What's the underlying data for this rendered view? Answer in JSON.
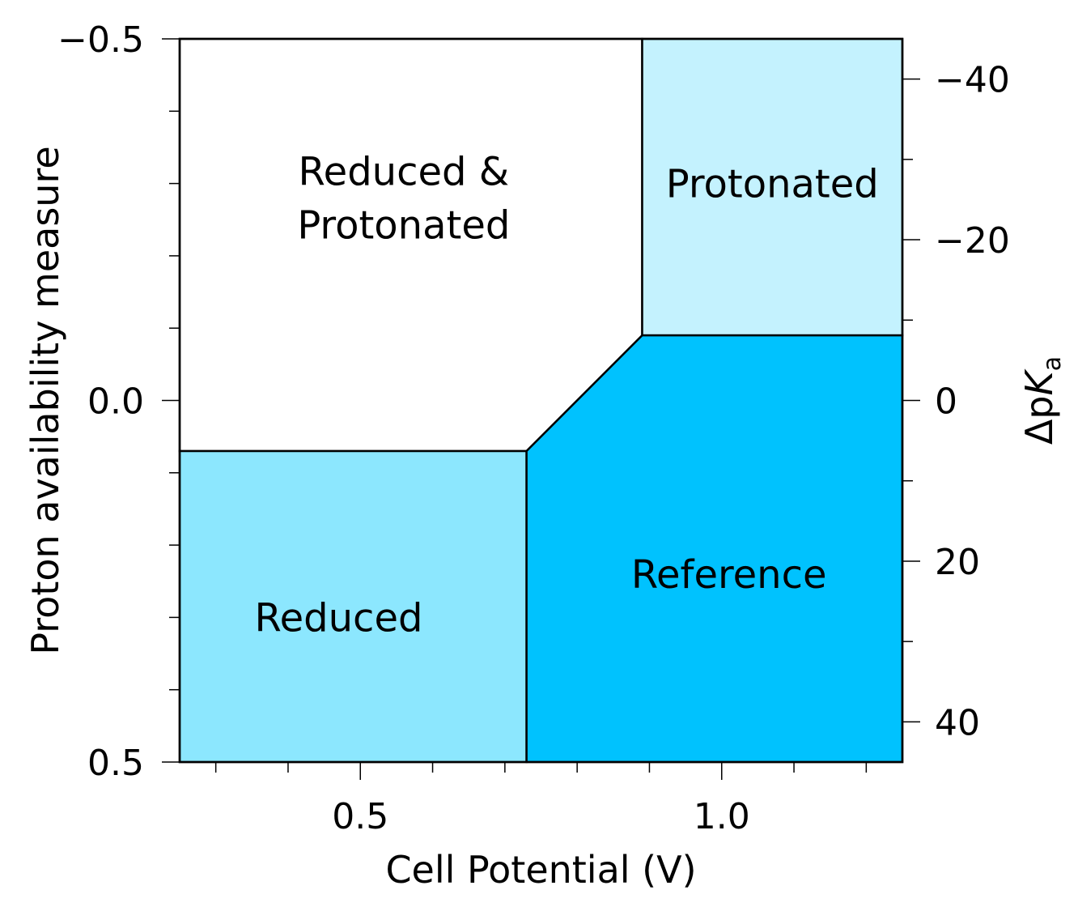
{
  "chart_data": {
    "type": "area",
    "title": "",
    "xlabel": "Cell Potential (V)",
    "ylabel": "Proton availability measure",
    "y2label": {
      "prefix": "Δp",
      "italic": "K",
      "sub": "a"
    },
    "xlim": [
      0.25,
      1.25
    ],
    "ylim": [
      -0.5,
      0.5
    ],
    "y_inverted": true,
    "y2lim": [
      -45,
      45
    ],
    "y2_inverted": true,
    "grid": false,
    "x_major_ticks": [
      0.5,
      1.0
    ],
    "x_major_labels": [
      "0.5",
      "1.0"
    ],
    "x_minor_ticks": [
      0.3,
      0.4,
      0.6,
      0.7,
      0.8,
      0.9,
      1.1,
      1.2
    ],
    "y_major_ticks": [
      -0.5,
      0.0,
      0.5
    ],
    "y_major_labels": [
      "−0.5",
      "0.0",
      "0.5"
    ],
    "y_minor_ticks": [
      -0.4,
      -0.3,
      -0.2,
      -0.1,
      0.1,
      0.2,
      0.3,
      0.4
    ],
    "y2_major_ticks": [
      -40,
      -20,
      0,
      20,
      40
    ],
    "y2_major_labels": [
      "−40",
      "−20",
      "0",
      "20",
      "40"
    ],
    "y2_minor_ticks": [
      -30,
      -10,
      10,
      30
    ],
    "regions": [
      {
        "name": "Reduced & Protonated",
        "label_lines": [
          "Reduced &",
          "Protonated"
        ],
        "color": "#ffffff",
        "polygon": [
          [
            0.25,
            -0.5
          ],
          [
            0.89,
            -0.5
          ],
          [
            0.89,
            -0.09
          ],
          [
            0.73,
            0.07
          ],
          [
            0.25,
            0.07
          ]
        ],
        "label_at": [
          0.56,
          -0.28
        ]
      },
      {
        "name": "Protonated",
        "label_lines": [
          "Protonated"
        ],
        "color": "#c4f2fe",
        "polygon": [
          [
            0.89,
            -0.5
          ],
          [
            1.25,
            -0.5
          ],
          [
            1.25,
            -0.09
          ],
          [
            0.89,
            -0.09
          ]
        ],
        "label_at": [
          1.07,
          -0.3
        ]
      },
      {
        "name": "Reduced",
        "label_lines": [
          "Reduced"
        ],
        "color": "#8ce7fe",
        "polygon": [
          [
            0.25,
            0.07
          ],
          [
            0.73,
            0.07
          ],
          [
            0.73,
            0.5
          ],
          [
            0.25,
            0.5
          ]
        ],
        "label_at": [
          0.47,
          0.3
        ]
      },
      {
        "name": "Reference",
        "label_lines": [
          "Reference"
        ],
        "color": "#00c2fe",
        "polygon": [
          [
            0.73,
            0.07
          ],
          [
            0.89,
            -0.09
          ],
          [
            1.25,
            -0.09
          ],
          [
            1.25,
            0.5
          ],
          [
            0.73,
            0.5
          ]
        ],
        "label_at": [
          1.01,
          0.24
        ]
      }
    ]
  }
}
